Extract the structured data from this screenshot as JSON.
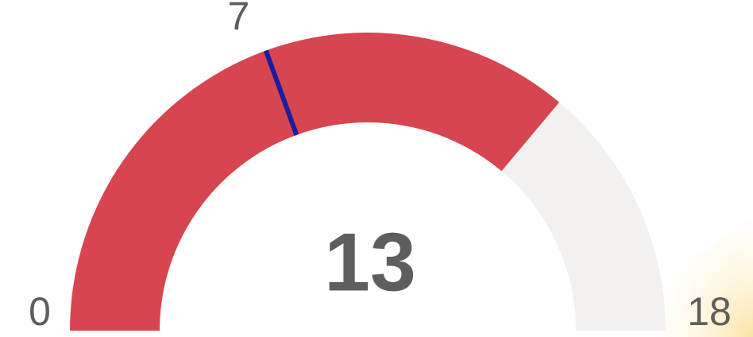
{
  "chart_data": {
    "type": "gauge",
    "min": 0,
    "max": 18,
    "value": 13,
    "target": 7,
    "color": "#d64550",
    "track_color": "#f2f1f0",
    "target_color": "#1c1ca0"
  }
}
